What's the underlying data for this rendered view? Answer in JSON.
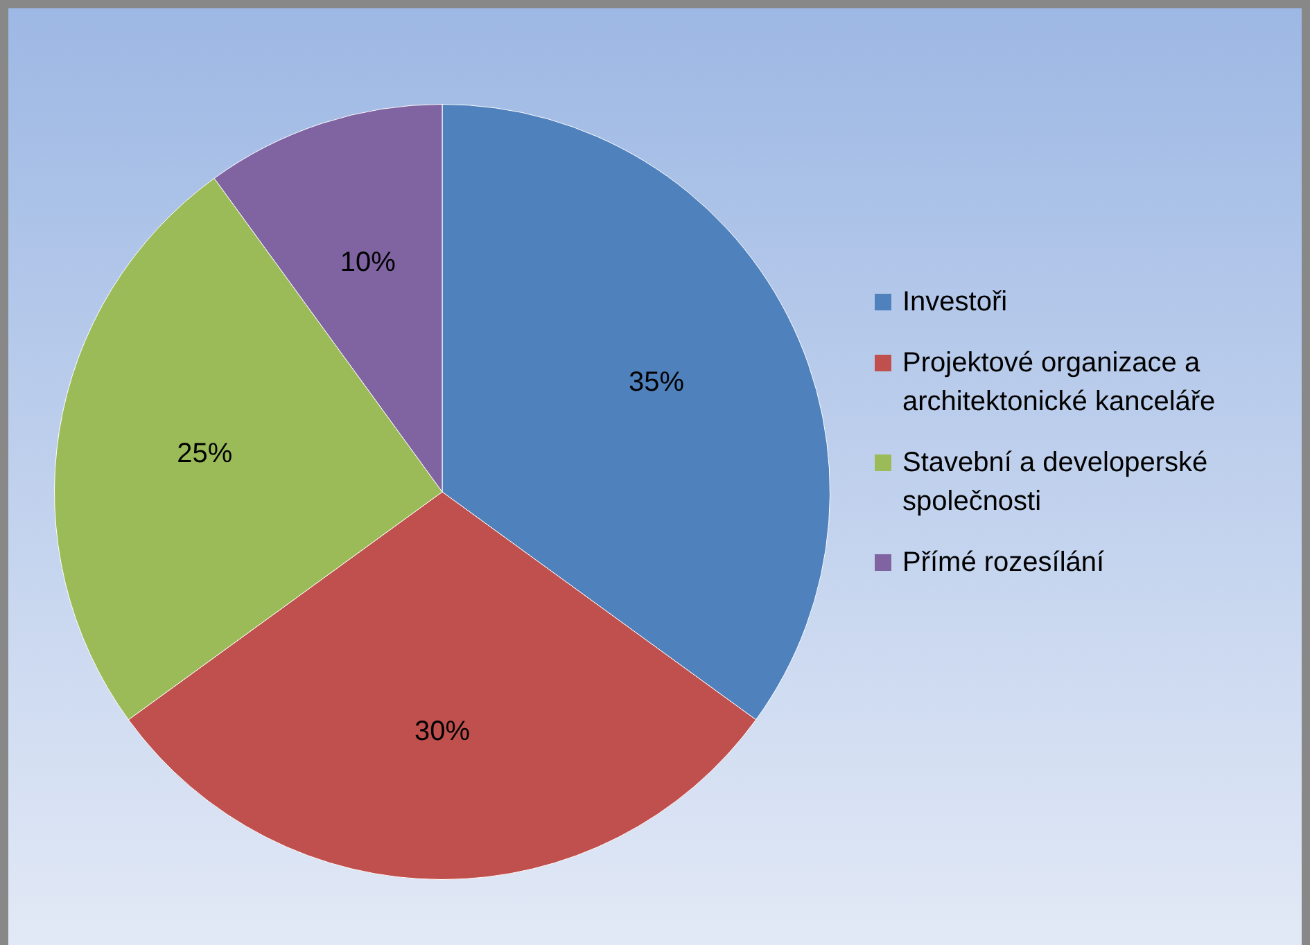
{
  "chart_data": {
    "type": "pie",
    "categories": [
      "Investoři",
      "Projektové organizace a architektonické kanceláře",
      "Stavební a developerské společnosti",
      "Přímé rozesílání"
    ],
    "values": [
      35,
      30,
      25,
      10
    ],
    "colors": [
      "#4f81bd",
      "#c0504d",
      "#9bbb59",
      "#8064a2"
    ],
    "value_labels": [
      "35%",
      "30%",
      "25%",
      "10%"
    ],
    "legend": "right"
  }
}
